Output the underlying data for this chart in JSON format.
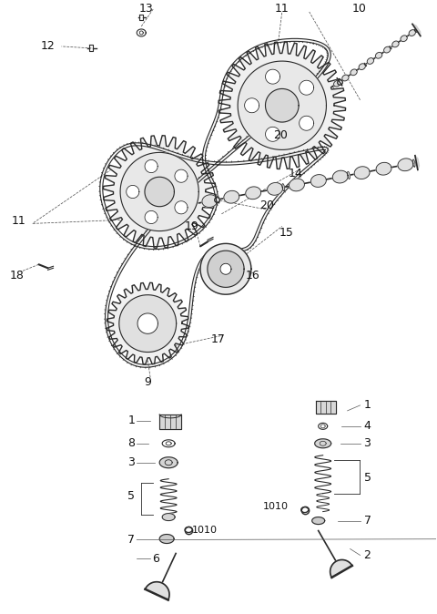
{
  "bg_color": "#ffffff",
  "line_color": "#2a2a2a",
  "label_color": "#111111",
  "figure_width": 4.8,
  "figure_height": 6.74,
  "dpi": 100
}
